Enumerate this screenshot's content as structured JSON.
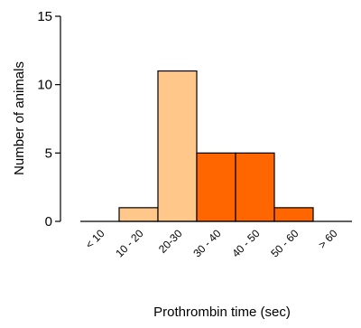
{
  "chart_data": {
    "type": "bar",
    "title": "",
    "xlabel": "Prothrombin time (sec)",
    "ylabel": "Number of animals",
    "categories": [
      "< 10",
      "10 - 20",
      "20-30",
      "30 - 40",
      "40 - 50",
      "50 - 60",
      "> 60"
    ],
    "values": [
      0,
      1,
      11,
      5,
      5,
      1,
      0
    ],
    "ylim": [
      0,
      15
    ],
    "yticks": [
      "0",
      "5",
      "10",
      "15"
    ],
    "ytick_values": [
      0,
      5,
      10,
      15
    ],
    "grid": false,
    "bar_colors": [
      "#FFC78A",
      "#FFC78A",
      "#FFC78A",
      "#FF6600",
      "#FF6600",
      "#FF6600",
      "#FF6600"
    ],
    "bar_edge_color": "#000000"
  }
}
